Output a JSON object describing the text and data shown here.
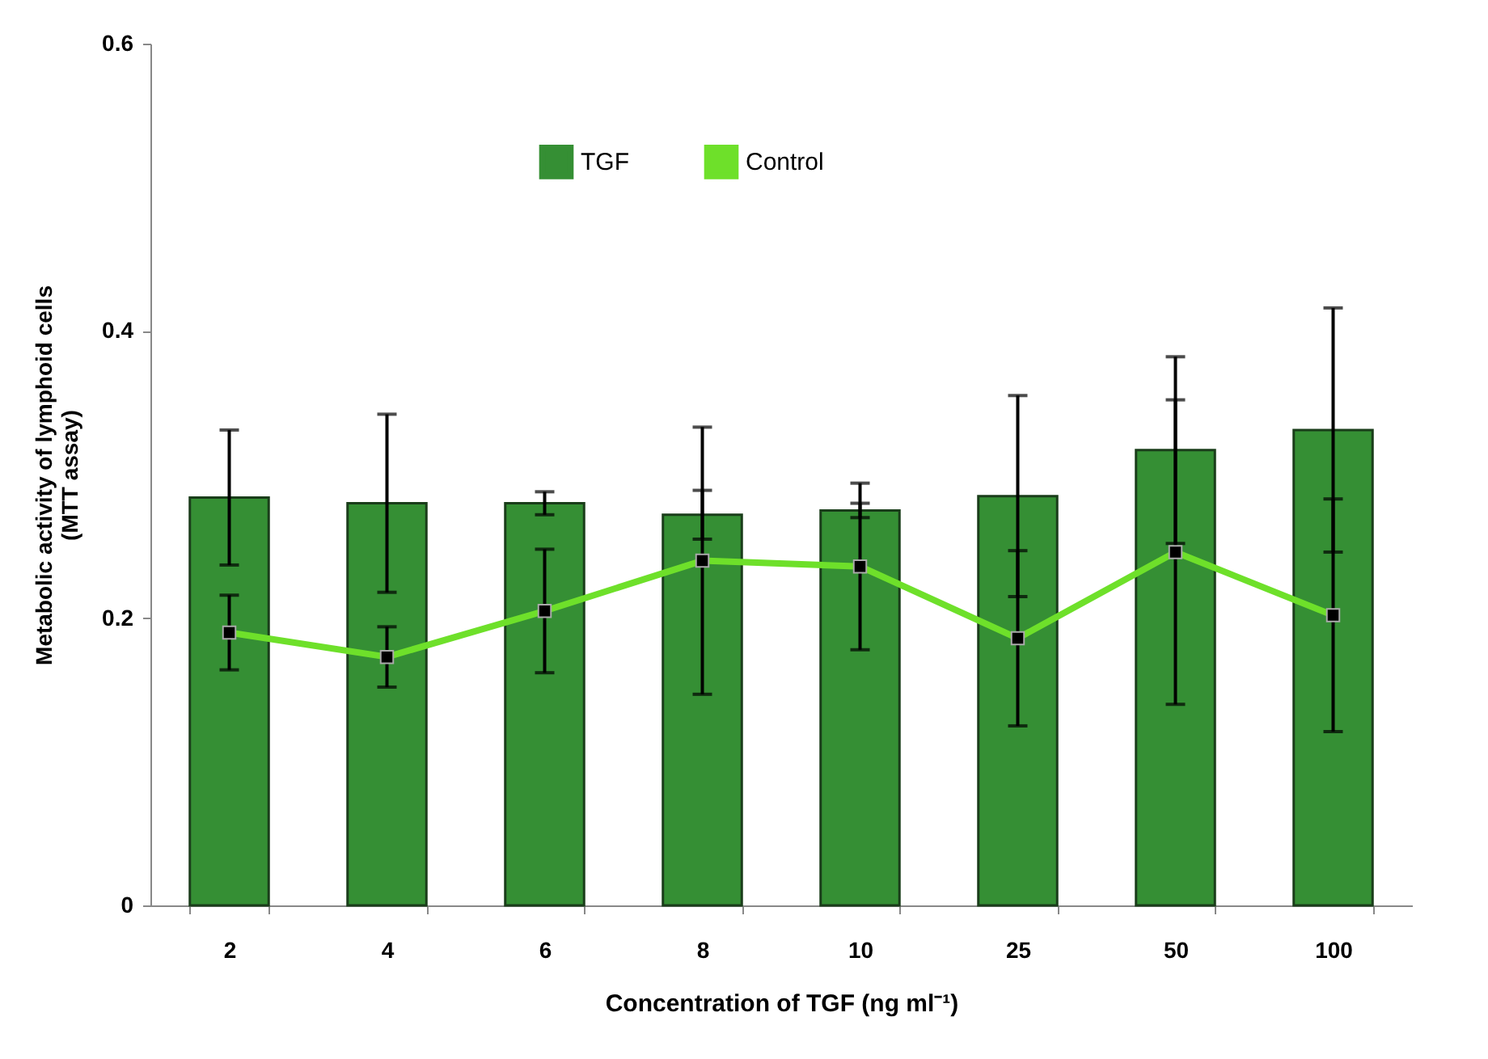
{
  "chart_data": {
    "type": "bar",
    "xlabel": "Concentration of TGF (ng ml⁻¹)",
    "ylabel": "Metabolic activity of lymphoid cells (MTT assay)",
    "categories": [
      "2",
      "4",
      "6",
      "8",
      "10",
      "25",
      "50",
      "100"
    ],
    "series": [
      {
        "name": "TGF",
        "color": "#358f34",
        "values": [
          0.284,
          0.28,
          0.28,
          0.272,
          0.275,
          0.285,
          0.317,
          0.331
        ],
        "errors": [
          0.047,
          0.062,
          0.008,
          0.017,
          0.005,
          0.07,
          0.065,
          0.085
        ]
      },
      {
        "name": "Control",
        "type": "line",
        "color": "#6ee02a",
        "values": [
          0.19,
          0.173,
          0.205,
          0.24,
          0.236,
          0.186,
          0.246,
          0.202
        ],
        "errors": [
          0.026,
          0.021,
          0.043,
          0.093,
          0.058,
          0.061,
          0.106,
          0.081
        ]
      }
    ],
    "ylim": [
      0,
      0.6
    ],
    "yticks": [
      0,
      0.2,
      0.4,
      0.6
    ],
    "grid": false,
    "legend": "top",
    "marker": "square"
  }
}
